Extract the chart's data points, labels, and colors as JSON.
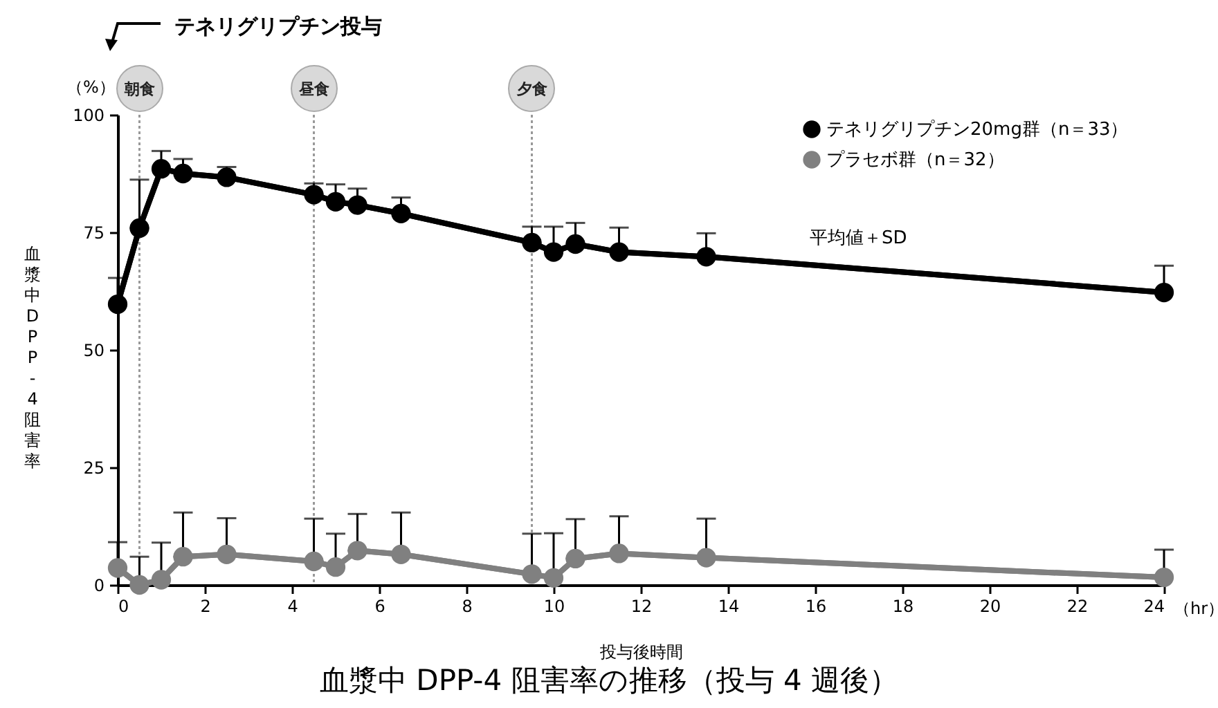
{
  "chart_data": {
    "type": "line",
    "title": "血漿中 DPP-4 阻害率の推移（投与 4 週後）",
    "xlabel": "投与後時間",
    "ylabel": "血漿中DPP-4阻害率",
    "annotations": [
      "テネリグリプチン投与",
      "平均値＋SD",
      "（%）",
      "（hr）"
    ],
    "x": [
      0,
      0.5,
      1,
      1.5,
      2.5,
      4.5,
      5,
      5.5,
      6.5,
      9.5,
      10,
      10.5,
      11.5,
      13.5,
      24
    ],
    "series": [
      {
        "name": "テネリグリプチン20mg群（n＝33）",
        "color": "#000000",
        "values": [
          59.7,
          75.9,
          88.5,
          87.5,
          86.7,
          83,
          81.5,
          80.8,
          79,
          72.8,
          70.8,
          72.5,
          70.8,
          69.8,
          62.2
        ],
        "errors": [
          [
            59.7,
            65.3
          ],
          [
            75.9,
            86.2
          ],
          [
            88.5,
            92.3
          ],
          [
            87.5,
            90.6
          ],
          [
            86.7,
            88.9
          ],
          [
            83,
            85.4
          ],
          [
            81.5,
            85.2
          ],
          [
            80.8,
            84.3
          ],
          [
            79,
            82.4
          ],
          [
            72.8,
            76.2
          ],
          [
            70.8,
            76.2
          ],
          [
            72.5,
            77
          ],
          [
            70.8,
            76
          ],
          [
            69.8,
            74.8
          ],
          [
            62.2,
            67.9
          ]
        ]
      },
      {
        "name": "プラセボ群（n＝32）",
        "color": "#808080",
        "values": [
          3.6,
          0,
          1.1,
          6,
          6.5,
          5,
          3.8,
          7.3,
          6.5,
          2.3,
          1.5,
          5.6,
          6.7,
          5.8,
          1.6
        ],
        "errors": [
          [
            3.6,
            9.1
          ],
          [
            0,
            6
          ],
          [
            1.1,
            9
          ],
          [
            6,
            15.4
          ],
          [
            6.5,
            14.2
          ],
          [
            5,
            14.1
          ],
          [
            3.8,
            10.9
          ],
          [
            7.3,
            15.1
          ],
          [
            6.5,
            15.4
          ],
          [
            2.3,
            10.9
          ],
          [
            1.5,
            11
          ],
          [
            5.6,
            14
          ],
          [
            6.7,
            14.6
          ],
          [
            5.8,
            14.1
          ],
          [
            1.6,
            7.5
          ]
        ]
      }
    ],
    "xlim": [
      0,
      24
    ],
    "xticks": [
      0,
      2,
      4,
      6,
      8,
      10,
      12,
      14,
      16,
      18,
      20,
      22,
      24
    ],
    "ylim": [
      0,
      100
    ],
    "yticks": [
      0,
      25,
      50,
      75,
      100
    ],
    "ref_lines": [
      {
        "axis": "x",
        "value": 0.5,
        "label": "朝食",
        "color": "#999999",
        "line_style": "dotted"
      },
      {
        "axis": "x",
        "value": 4.5,
        "label": "昼食",
        "color": "#999999",
        "line_style": "dotted"
      },
      {
        "axis": "x",
        "value": 9.5,
        "label": "夕食",
        "color": "#999999",
        "line_style": "dotted"
      }
    ],
    "legend": "top right",
    "marker": "circle",
    "line_style": "solid"
  }
}
